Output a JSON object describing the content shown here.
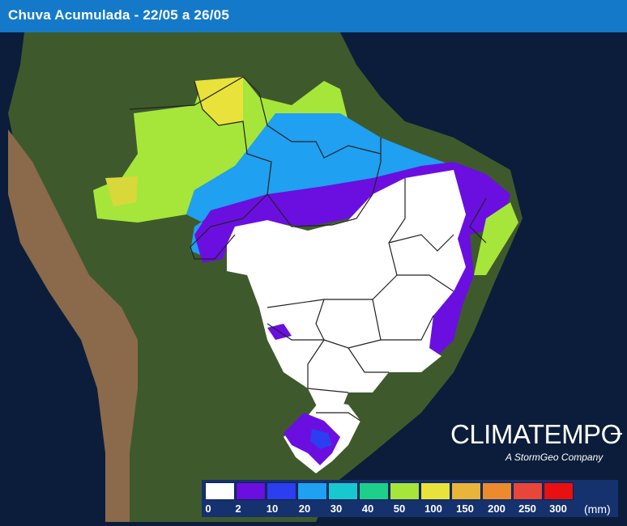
{
  "header": {
    "title": "Chuva Acumulada - 22/05 a 26/05"
  },
  "logo": {
    "name": "CLIMATEMPO",
    "tagline": "A StormGeo Company"
  },
  "legend": {
    "unit": "(mm)",
    "ticks": [
      "0",
      "2",
      "10",
      "20",
      "30",
      "40",
      "50",
      "100",
      "150",
      "200",
      "250",
      "300"
    ],
    "colors": [
      "#ffffff",
      "#6a0fe0",
      "#2b3ff0",
      "#1fa0f0",
      "#18c8d0",
      "#1ecf8a",
      "#a6e63a",
      "#e8e23a",
      "#e8b43a",
      "#ec8a2e",
      "#e8463a",
      "#e81010"
    ]
  },
  "map": {
    "ocean_color": "#0b1d3a",
    "land_color": "#3d5a2b",
    "rain_zones": [
      {
        "name": "north-amazon",
        "color": "#a6e63a"
      },
      {
        "name": "north-yellow",
        "color": "#e8e23a"
      },
      {
        "name": "amazon-south-band",
        "color": "#1fa0f0"
      },
      {
        "name": "purple-band",
        "color": "#6a0fe0"
      },
      {
        "name": "dry-center",
        "color": "#ffffff"
      }
    ]
  }
}
